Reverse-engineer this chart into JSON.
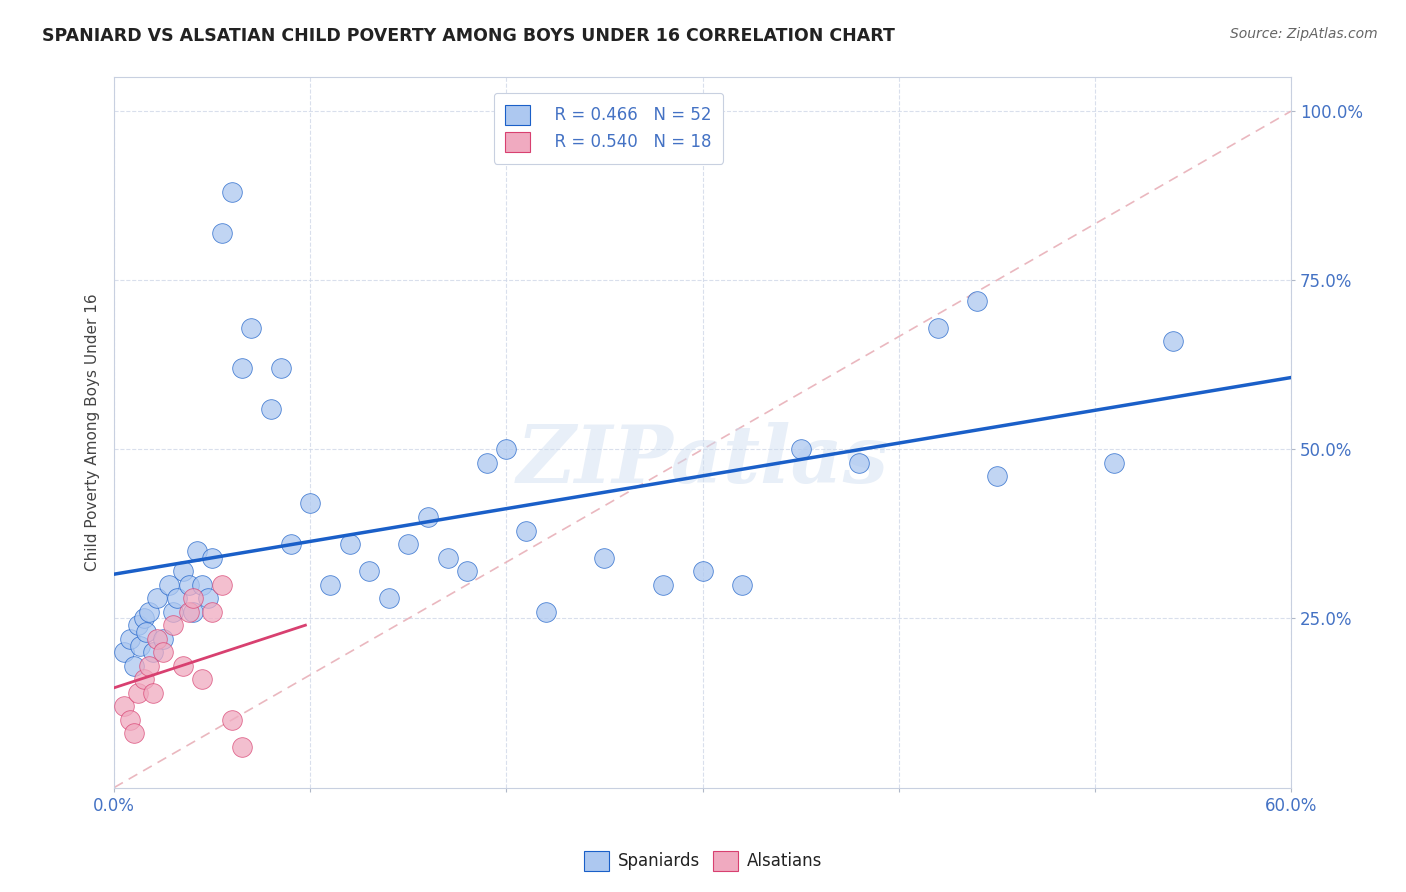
{
  "title": "SPANIARD VS ALSATIAN CHILD POVERTY AMONG BOYS UNDER 16 CORRELATION CHART",
  "source": "Source: ZipAtlas.com",
  "ylabel": "Child Poverty Among Boys Under 16",
  "xlim": [
    0.0,
    0.6
  ],
  "ylim": [
    0.0,
    1.05
  ],
  "watermark": "ZIPatlas",
  "legend_r1": "R = 0.466",
  "legend_n1": "N = 52",
  "legend_r2": "R = 0.540",
  "legend_n2": "N = 18",
  "spaniard_color": "#adc8f0",
  "alsatian_color": "#f0aac0",
  "line_blue": "#1a5fc8",
  "line_pink": "#d84070",
  "line_diagonal_color": "#e8b0b8",
  "grid_color": "#d0d8e8",
  "background_color": "#ffffff",
  "tick_color": "#4472c4",
  "title_color": "#222222",
  "source_color": "#666666",
  "ylabel_color": "#444444",
  "spaniards_x": [
    0.005,
    0.008,
    0.01,
    0.012,
    0.013,
    0.015,
    0.016,
    0.018,
    0.02,
    0.022,
    0.025,
    0.028,
    0.03,
    0.032,
    0.035,
    0.038,
    0.04,
    0.042,
    0.045,
    0.048,
    0.05,
    0.055,
    0.06,
    0.065,
    0.07,
    0.08,
    0.085,
    0.09,
    0.1,
    0.11,
    0.12,
    0.13,
    0.14,
    0.15,
    0.16,
    0.17,
    0.18,
    0.19,
    0.2,
    0.21,
    0.22,
    0.25,
    0.28,
    0.3,
    0.32,
    0.35,
    0.38,
    0.42,
    0.44,
    0.45,
    0.51,
    0.54
  ],
  "spaniards_y": [
    0.2,
    0.22,
    0.18,
    0.24,
    0.21,
    0.25,
    0.23,
    0.26,
    0.2,
    0.28,
    0.22,
    0.3,
    0.26,
    0.28,
    0.32,
    0.3,
    0.26,
    0.35,
    0.3,
    0.28,
    0.34,
    0.82,
    0.88,
    0.62,
    0.68,
    0.56,
    0.62,
    0.36,
    0.42,
    0.3,
    0.36,
    0.32,
    0.28,
    0.36,
    0.4,
    0.34,
    0.32,
    0.48,
    0.5,
    0.38,
    0.26,
    0.34,
    0.3,
    0.32,
    0.3,
    0.5,
    0.48,
    0.68,
    0.72,
    0.46,
    0.48,
    0.66
  ],
  "alsatians_x": [
    0.005,
    0.008,
    0.01,
    0.012,
    0.015,
    0.018,
    0.02,
    0.022,
    0.025,
    0.03,
    0.035,
    0.038,
    0.04,
    0.045,
    0.05,
    0.055,
    0.06,
    0.065
  ],
  "alsatians_y": [
    0.12,
    0.1,
    0.08,
    0.14,
    0.16,
    0.18,
    0.14,
    0.22,
    0.2,
    0.24,
    0.18,
    0.26,
    0.28,
    0.16,
    0.26,
    0.3,
    0.1,
    0.06
  ]
}
